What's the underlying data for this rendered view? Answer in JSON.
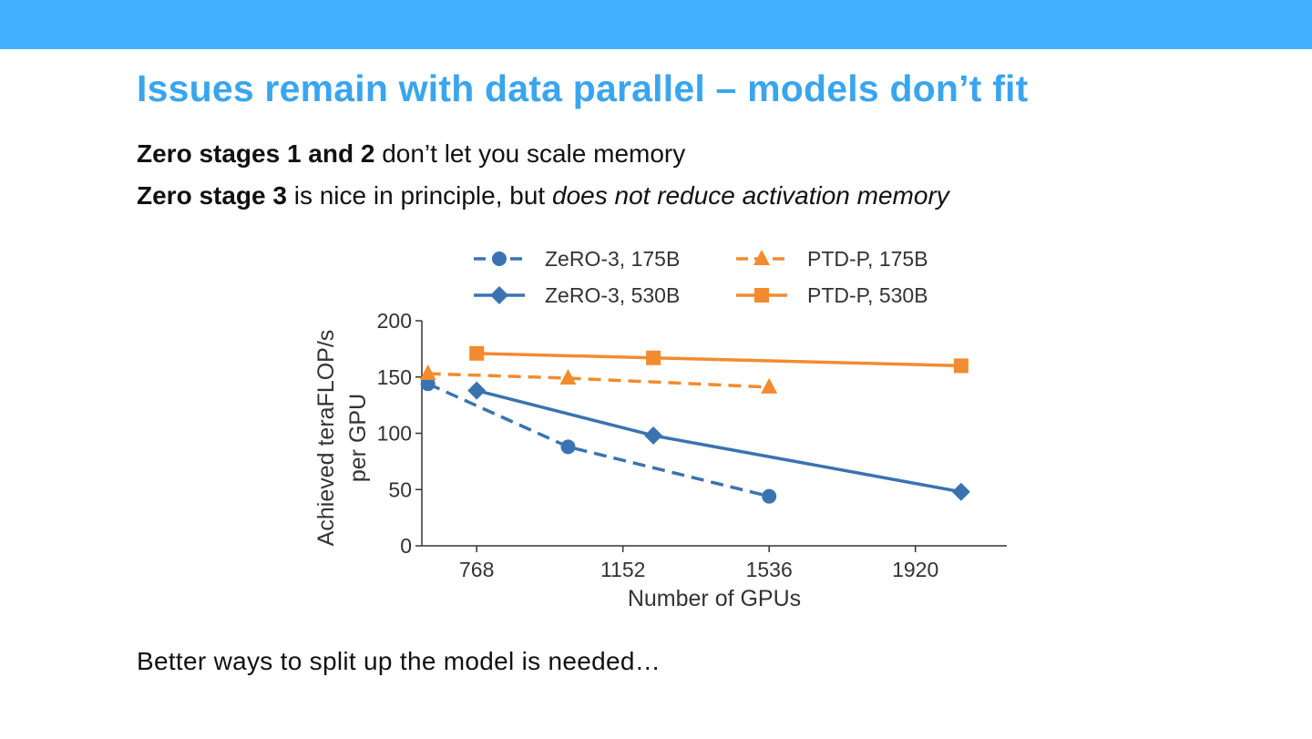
{
  "slide": {
    "title": "Issues remain with data parallel – models don’t fit",
    "bullet1_bold": "Zero stages 1 and 2",
    "bullet1_rest": " don’t let you scale memory",
    "bullet2_bold": "Zero stage 3",
    "bullet2_mid": " is nice in principle, but ",
    "bullet2_italic": "does not reduce activation memory",
    "footer": "Better ways to split up the model is needed…",
    "header_color": "#40b0ff",
    "title_color": "#3aa5ee"
  },
  "chart_data": {
    "type": "line",
    "xlabel": "Number of GPUs",
    "ylabel_line1": "Achieved teraFLOP/s",
    "ylabel_line2": "per GPU",
    "xlim": [
      624,
      2160
    ],
    "ylim": [
      0,
      200
    ],
    "xticks": [
      768,
      1152,
      1536,
      1920
    ],
    "yticks": [
      0,
      50,
      100,
      150,
      200
    ],
    "legend_position": "top",
    "series": [
      {
        "name": "ZeRO-3, 175B",
        "color": "#3a73b0",
        "dashed": true,
        "marker": "circle",
        "x": [
          640,
          1008,
          1536
        ],
        "y": [
          144,
          88,
          44
        ]
      },
      {
        "name": "PTD-P, 175B",
        "color": "#f28b30",
        "dashed": true,
        "marker": "triangle",
        "x": [
          640,
          1008,
          1536
        ],
        "y": [
          153,
          149,
          141
        ]
      },
      {
        "name": "ZeRO-3, 530B",
        "color": "#3a73b0",
        "dashed": false,
        "marker": "diamond",
        "x": [
          768,
          1232,
          2040
        ],
        "y": [
          138,
          98,
          48
        ]
      },
      {
        "name": "PTD-P, 530B",
        "color": "#f28b30",
        "dashed": false,
        "marker": "square",
        "x": [
          768,
          1232,
          2040
        ],
        "y": [
          171,
          167,
          160
        ]
      }
    ]
  }
}
